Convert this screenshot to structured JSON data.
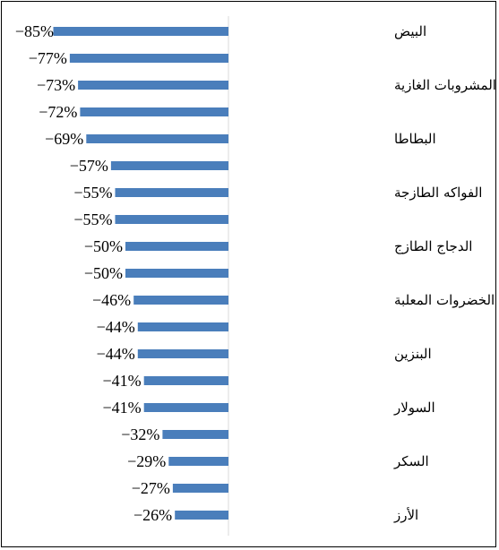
{
  "chart_data": {
    "type": "bar",
    "orientation": "horizontal",
    "title": "",
    "xlabel": "",
    "ylabel": "",
    "xlim": [
      -85,
      0
    ],
    "grid": false,
    "legend": "none",
    "bar_color": "#4A7EBB",
    "categories": [
      "البيض",
      "",
      "المشروبات الغازية",
      "",
      "البطاطا",
      "",
      "الفواكه الطازجة",
      "",
      "الدجاج الطازج",
      "",
      "الخضروات المعلبة",
      "",
      "البنزين",
      "",
      "السولار",
      "",
      "السكر",
      "",
      "الأرز"
    ],
    "values": [
      -85,
      -77,
      -73,
      -72,
      -69,
      -57,
      -55,
      -55,
      -50,
      -50,
      -46,
      -44,
      -44,
      -41,
      -41,
      -32,
      -29,
      -27,
      -26
    ],
    "data_labels": [
      "−85%",
      "−77%",
      "−73%",
      "−72%",
      "−69%",
      "−57%",
      "−55%",
      "−55%",
      "−50%",
      "−50%",
      "−46%",
      "−44%",
      "−44%",
      "−41%",
      "−41%",
      "−32%",
      "−29%",
      "−27%",
      "−26%"
    ]
  }
}
